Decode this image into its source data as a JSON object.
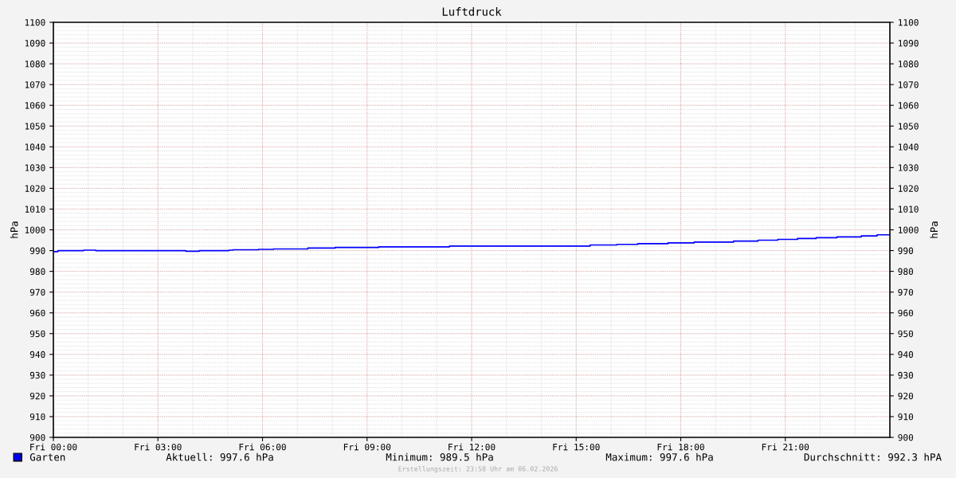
{
  "chart_data": {
    "type": "step",
    "title": "Luftdruck",
    "ylabel": "hPa",
    "y2label": "hPa",
    "x": [
      "2026-02-06T00:00",
      "2026-02-06T00:08",
      "2026-02-06T00:52",
      "2026-02-06T01:13",
      "2026-02-06T03:48",
      "2026-02-06T04:11",
      "2026-02-06T05:02",
      "2026-02-06T05:09",
      "2026-02-06T05:53",
      "2026-02-06T06:19",
      "2026-02-06T07:18",
      "2026-02-06T08:05",
      "2026-02-06T09:20",
      "2026-02-06T11:22",
      "2026-02-06T15:24",
      "2026-02-06T16:10",
      "2026-02-06T16:46",
      "2026-02-06T17:38",
      "2026-02-06T18:23",
      "2026-02-06T19:31",
      "2026-02-06T20:13",
      "2026-02-06T20:47",
      "2026-02-06T21:21",
      "2026-02-06T21:53",
      "2026-02-06T22:29",
      "2026-02-06T23:11",
      "2026-02-06T23:38",
      "2026-02-07T00:00"
    ],
    "series": [
      {
        "name": "Garten",
        "color": "#0000ff",
        "values": [
          989.5,
          990.0,
          990.2,
          990.0,
          989.7,
          990.0,
          990.2,
          990.4,
          990.6,
          990.8,
          991.2,
          991.5,
          991.8,
          992.2,
          992.7,
          993.0,
          993.3,
          993.7,
          994.1,
          994.6,
          995.0,
          995.4,
          995.8,
          996.2,
          996.6,
          997.1,
          997.6,
          997.6
        ]
      }
    ],
    "xlim": [
      "2026-02-06T00:00",
      "2026-02-07T00:00"
    ],
    "xticks": [
      {
        "value": "2026-02-06T00:00",
        "label": "Fri 00:00"
      },
      {
        "value": "2026-02-06T03:00",
        "label": "Fri 03:00"
      },
      {
        "value": "2026-02-06T06:00",
        "label": "Fri 06:00"
      },
      {
        "value": "2026-02-06T09:00",
        "label": "Fri 09:00"
      },
      {
        "value": "2026-02-06T12:00",
        "label": "Fri 12:00"
      },
      {
        "value": "2026-02-06T15:00",
        "label": "Fri 15:00"
      },
      {
        "value": "2026-02-06T18:00",
        "label": "Fri 18:00"
      },
      {
        "value": "2026-02-06T21:00",
        "label": "Fri 21:00"
      }
    ],
    "ylim": [
      900,
      1100
    ],
    "yticks": [
      900,
      910,
      920,
      930,
      940,
      950,
      960,
      970,
      980,
      990,
      1000,
      1010,
      1020,
      1030,
      1040,
      1050,
      1060,
      1070,
      1080,
      1090,
      1100
    ],
    "y2lim": [
      900,
      1100
    ],
    "y2ticks": [
      900,
      910,
      920,
      930,
      940,
      950,
      960,
      970,
      980,
      990,
      1000,
      1010,
      1020,
      1030,
      1040,
      1050,
      1060,
      1070,
      1080,
      1090,
      1100
    ],
    "grid": true,
    "legend": "bottom left",
    "annotations": [
      "Aktuell: 997.6 hPa",
      "Minimum: 989.5 hPa",
      "Maximum: 997.6 hPa",
      "Durchschnitt: 992.3 hPA",
      "Erstellungszeit: 23:58 Uhr am 06.02.2026"
    ]
  }
}
